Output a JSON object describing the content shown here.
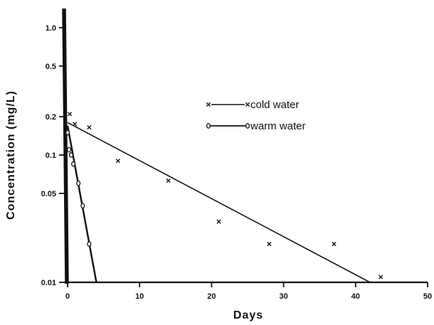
{
  "chart_data": {
    "type": "scatter",
    "xlabel": "Days",
    "ylabel": "Concentration (mg/L)",
    "x_scale": "linear",
    "y_scale": "log",
    "xlim": [
      0,
      50
    ],
    "ylim": [
      0.01,
      1.0
    ],
    "x_ticks": [
      0,
      10,
      20,
      30,
      40,
      50
    ],
    "x_tick_labels": [
      "0",
      "10",
      "20",
      "30",
      "40",
      "50"
    ],
    "y_ticks": [
      0.01,
      0.05,
      0.1,
      0.2,
      0.5,
      1.0
    ],
    "y_tick_labels": [
      "0.01",
      "0.05",
      "0.1",
      "0.2",
      "0.5",
      "1.0"
    ],
    "grid": false,
    "legend_position": "top-center",
    "series": [
      {
        "name": "cold water",
        "marker": "x",
        "x": [
          0.3,
          1,
          3,
          7,
          14,
          21,
          28,
          37,
          43.5
        ],
        "y": [
          0.21,
          0.175,
          0.165,
          0.09,
          0.063,
          0.03,
          0.02,
          0.02,
          0.011
        ],
        "fit_line": {
          "x": [
            0,
            42
          ],
          "y": [
            0.18,
            0.01
          ]
        }
      },
      {
        "name": "warm water",
        "marker": "o",
        "x": [
          0,
          0.2,
          0.5,
          0.8,
          1.5,
          2.1,
          3
        ],
        "y": [
          0.15,
          0.11,
          0.1,
          0.085,
          0.06,
          0.04,
          0.02
        ],
        "fit_line": {
          "x": [
            0,
            4
          ],
          "y": [
            0.17,
            0.01
          ]
        }
      }
    ]
  }
}
